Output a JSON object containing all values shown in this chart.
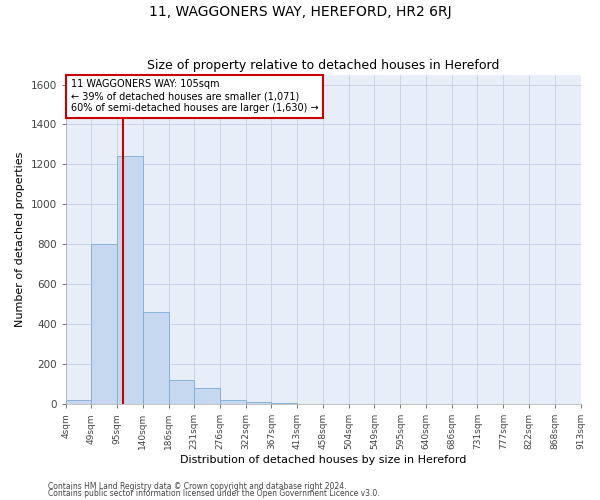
{
  "title": "11, WAGGONERS WAY, HEREFORD, HR2 6RJ",
  "subtitle": "Size of property relative to detached houses in Hereford",
  "xlabel": "Distribution of detached houses by size in Hereford",
  "ylabel": "Number of detached properties",
  "footer_line1": "Contains HM Land Registry data © Crown copyright and database right 2024.",
  "footer_line2": "Contains public sector information licensed under the Open Government Licence v3.0.",
  "bin_edges": [
    4,
    49,
    95,
    140,
    186,
    231,
    276,
    322,
    367,
    413,
    458,
    504,
    549,
    595,
    640,
    686,
    731,
    777,
    822,
    868,
    913
  ],
  "bar_heights": [
    20,
    800,
    1240,
    460,
    120,
    80,
    20,
    10,
    5,
    0,
    0,
    0,
    0,
    0,
    0,
    0,
    0,
    0,
    0,
    0
  ],
  "bar_color": "#c5d8ef",
  "bar_edge_color": "#7aadd4",
  "grid_color": "#c8d4e8",
  "background_color": "#e8eef8",
  "vline_x": 105,
  "vline_color": "#cc0000",
  "annotation_text": "11 WAGGONERS WAY: 105sqm\n← 39% of detached houses are smaller (1,071)\n60% of semi-detached houses are larger (1,630) →",
  "annotation_box_color": "#ffffff",
  "annotation_box_edge_color": "#cc0000",
  "ylim": [
    0,
    1650
  ],
  "yticks": [
    0,
    200,
    400,
    600,
    800,
    1000,
    1200,
    1400,
    1600
  ],
  "tick_labels": [
    "4sqm",
    "49sqm",
    "95sqm",
    "140sqm",
    "186sqm",
    "231sqm",
    "276sqm",
    "322sqm",
    "367sqm",
    "413sqm",
    "458sqm",
    "504sqm",
    "549sqm",
    "595sqm",
    "640sqm",
    "686sqm",
    "731sqm",
    "777sqm",
    "822sqm",
    "868sqm",
    "913sqm"
  ],
  "title_fontsize": 10,
  "subtitle_fontsize": 9,
  "xlabel_fontsize": 8,
  "ylabel_fontsize": 8,
  "xtick_fontsize": 6.5,
  "ytick_fontsize": 7.5,
  "annotation_fontsize": 7,
  "footer_fontsize": 5.5
}
